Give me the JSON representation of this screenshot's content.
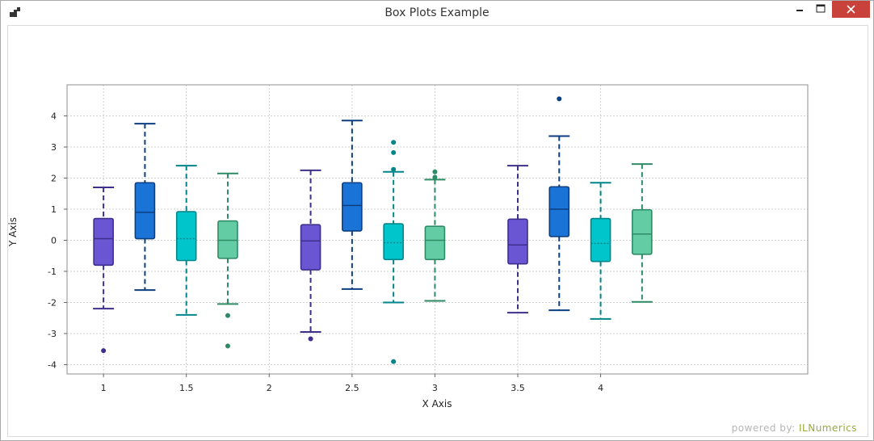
{
  "window": {
    "title": "Box Plots Example",
    "controls": {
      "minimize": "minimize",
      "maximize": "maximize",
      "close": "close"
    },
    "close_color": "#c9413b"
  },
  "watermark": {
    "prefix": "powered by:",
    "brand": "ILNumerics"
  },
  "chart_data": {
    "type": "box",
    "xlabel": "X Axis",
    "ylabel": "Y Axis",
    "xlim": [
      0.78,
      5.25
    ],
    "ylim": [
      -4.3,
      5.0
    ],
    "xticks": [
      1,
      1.5,
      2,
      2.5,
      3,
      3.5,
      4
    ],
    "xtick_labels": [
      "1",
      "1.5",
      "2",
      "2.5",
      "3",
      "3.5",
      "4"
    ],
    "yticks": [
      4,
      3,
      2,
      1,
      0,
      -1,
      -2,
      -3,
      -4
    ],
    "ytick_labels": [
      "4",
      "3",
      "2",
      "1",
      "0",
      "-1",
      "-2",
      "-3",
      "-4"
    ],
    "grid": true,
    "palette": [
      {
        "fill": "#6a56d3",
        "stroke": "#3f2f8a"
      },
      {
        "fill": "#1a73d6",
        "stroke": "#0d3f80"
      },
      {
        "fill": "#00c6cc",
        "stroke": "#00868a"
      },
      {
        "fill": "#63cca4",
        "stroke": "#2f8a66"
      }
    ],
    "boxes": [
      {
        "x": 1.0,
        "color": 0,
        "whisker_low": -2.2,
        "q1": -0.8,
        "median": 0.05,
        "q3": 0.7,
        "whisker_high": 1.7,
        "median_style": "solid",
        "outliers": [
          -3.55
        ]
      },
      {
        "x": 1.25,
        "color": 1,
        "whisker_low": -1.6,
        "q1": 0.05,
        "median": 0.9,
        "q3": 1.85,
        "whisker_high": 3.75,
        "median_style": "solid",
        "outliers": []
      },
      {
        "x": 1.5,
        "color": 2,
        "whisker_low": -2.4,
        "q1": -0.65,
        "median": 0.05,
        "q3": 0.92,
        "whisker_high": 2.4,
        "median_style": "dotted",
        "outliers": []
      },
      {
        "x": 1.75,
        "color": 3,
        "whisker_low": -2.05,
        "q1": -0.58,
        "median": 0.0,
        "q3": 0.62,
        "whisker_high": 2.15,
        "median_style": "solid",
        "outliers": [
          -2.42,
          -3.4
        ]
      },
      {
        "x": 2.25,
        "color": 0,
        "whisker_low": -2.95,
        "q1": -0.95,
        "median": -0.02,
        "q3": 0.5,
        "whisker_high": 2.25,
        "median_style": "solid",
        "outliers": [
          -3.17
        ]
      },
      {
        "x": 2.5,
        "color": 1,
        "whisker_low": -1.57,
        "q1": 0.3,
        "median": 1.12,
        "q3": 1.85,
        "whisker_high": 3.85,
        "median_style": "solid",
        "outliers": []
      },
      {
        "x": 2.75,
        "color": 2,
        "whisker_low": -2.0,
        "q1": -0.62,
        "median": -0.08,
        "q3": 0.53,
        "whisker_high": 2.2,
        "median_style": "dotted",
        "outliers": [
          2.28,
          2.82,
          3.15,
          -3.9
        ]
      },
      {
        "x": 3.0,
        "color": 3,
        "whisker_low": -1.95,
        "q1": -0.62,
        "median": 0.0,
        "q3": 0.45,
        "whisker_high": 1.95,
        "median_style": "solid",
        "outliers": [
          2.03,
          2.2
        ]
      },
      {
        "x": 3.5,
        "color": 0,
        "whisker_low": -2.33,
        "q1": -0.76,
        "median": -0.15,
        "q3": 0.68,
        "whisker_high": 2.4,
        "median_style": "solid",
        "outliers": []
      },
      {
        "x": 3.75,
        "color": 1,
        "whisker_low": -2.25,
        "q1": 0.12,
        "median": 1.0,
        "q3": 1.72,
        "whisker_high": 3.35,
        "median_style": "solid",
        "outliers": [
          4.55
        ]
      },
      {
        "x": 4.0,
        "color": 2,
        "whisker_low": -2.53,
        "q1": -0.68,
        "median": -0.1,
        "q3": 0.7,
        "whisker_high": 1.85,
        "median_style": "dotted",
        "outliers": []
      },
      {
        "x": 4.25,
        "color": 3,
        "whisker_low": -1.98,
        "q1": -0.45,
        "median": 0.2,
        "q3": 0.98,
        "whisker_high": 2.45,
        "median_style": "solid",
        "outliers": []
      }
    ]
  }
}
